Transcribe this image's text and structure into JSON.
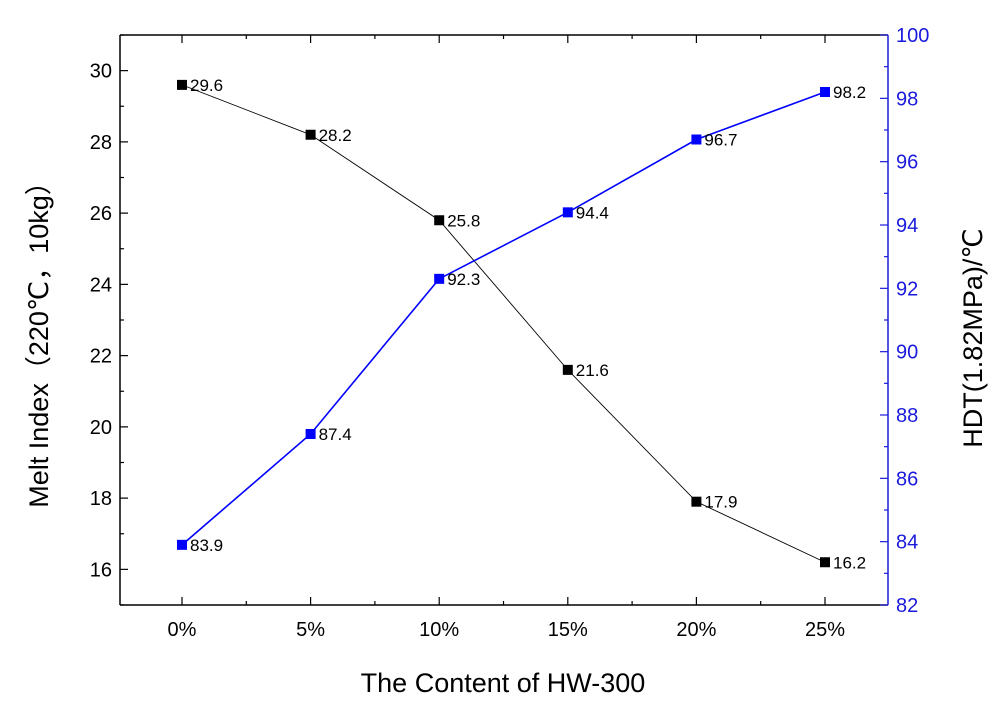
{
  "chart_data": {
    "type": "line",
    "title": "",
    "xlabel": "The Content of HW-300",
    "ylabel_left": "Melt Index（220℃，10kg）",
    "ylabel_right": "HDT(1.82MPa)/℃",
    "categories": [
      "0%",
      "5%",
      "10%",
      "15%",
      "20%",
      "25%"
    ],
    "ylim_left": [
      15,
      31
    ],
    "yticks_left": [
      16,
      18,
      20,
      22,
      24,
      26,
      28,
      30
    ],
    "ylim_right": [
      82,
      100
    ],
    "yticks_right": [
      82,
      84,
      86,
      88,
      90,
      92,
      94,
      96,
      98,
      100
    ],
    "grid": false,
    "legend": "none",
    "series": [
      {
        "axis": "left",
        "color": "#000000",
        "marker": "square",
        "values": [
          29.6,
          28.2,
          25.8,
          21.6,
          17.9,
          16.2
        ],
        "labels": [
          "29.6",
          "28.2",
          "25.8",
          "21.6",
          "17.9",
          "16.2"
        ]
      },
      {
        "axis": "right",
        "color": "#0000ff",
        "marker": "square",
        "values": [
          83.9,
          87.4,
          92.3,
          94.4,
          96.7,
          98.2
        ],
        "labels": [
          "83.9",
          "87.4",
          "92.3",
          "94.4",
          "96.7",
          "98.2"
        ]
      }
    ],
    "colors": {
      "left_axis": "#000000",
      "right_axis": "#1a1adc"
    }
  }
}
